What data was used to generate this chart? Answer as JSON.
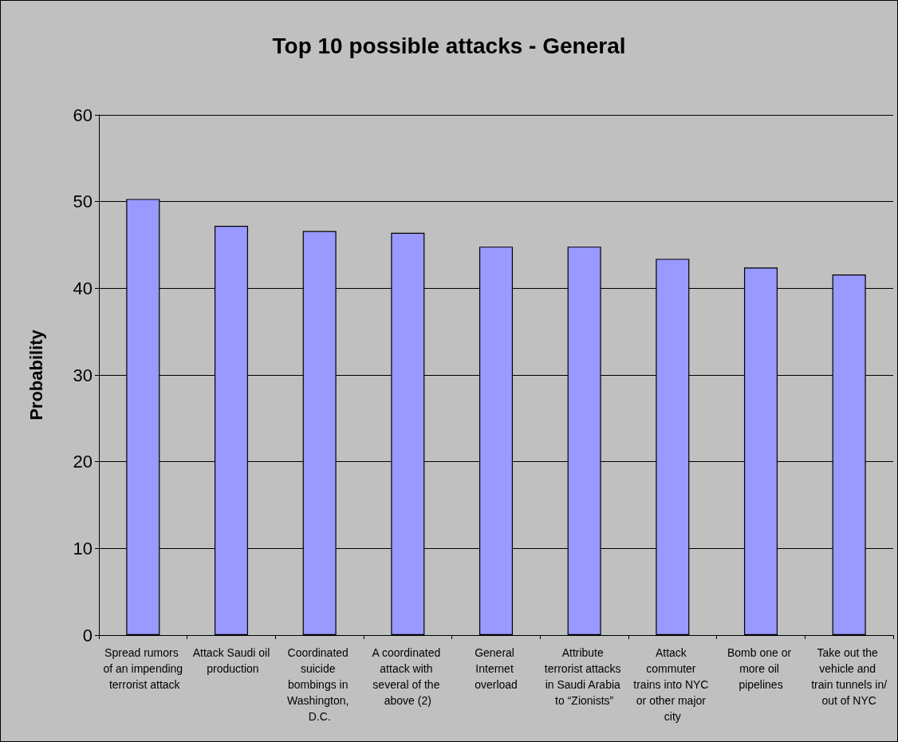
{
  "chart_data": {
    "type": "bar",
    "title": "Top 10 possible attacks - General",
    "ylabel": "Probability",
    "categories": [
      "Spread rumors of an impending terrorist attack",
      "Attack Saudi oil production",
      "Coordinated suicide bombings in Washington, D.C.",
      "A coordinated attack with several of the above (2)",
      "General Internet overload",
      "Attribute terrorist attacks in Saudi Arabia to “Zionists”",
      "Attack commuter trains into NYC or other major city",
      "Bomb one or more oil pipelines",
      "Take out the vehicle and train tunnels in/out of NYC"
    ],
    "values": [
      50.3,
      47.2,
      46.6,
      46.4,
      44.8,
      44.8,
      43.4,
      42.4,
      41.6
    ],
    "color": "#9999ff",
    "ylim": [
      0,
      60
    ],
    "yticks": [
      0,
      10,
      20,
      30,
      40,
      50,
      60
    ],
    "grid": "y"
  }
}
